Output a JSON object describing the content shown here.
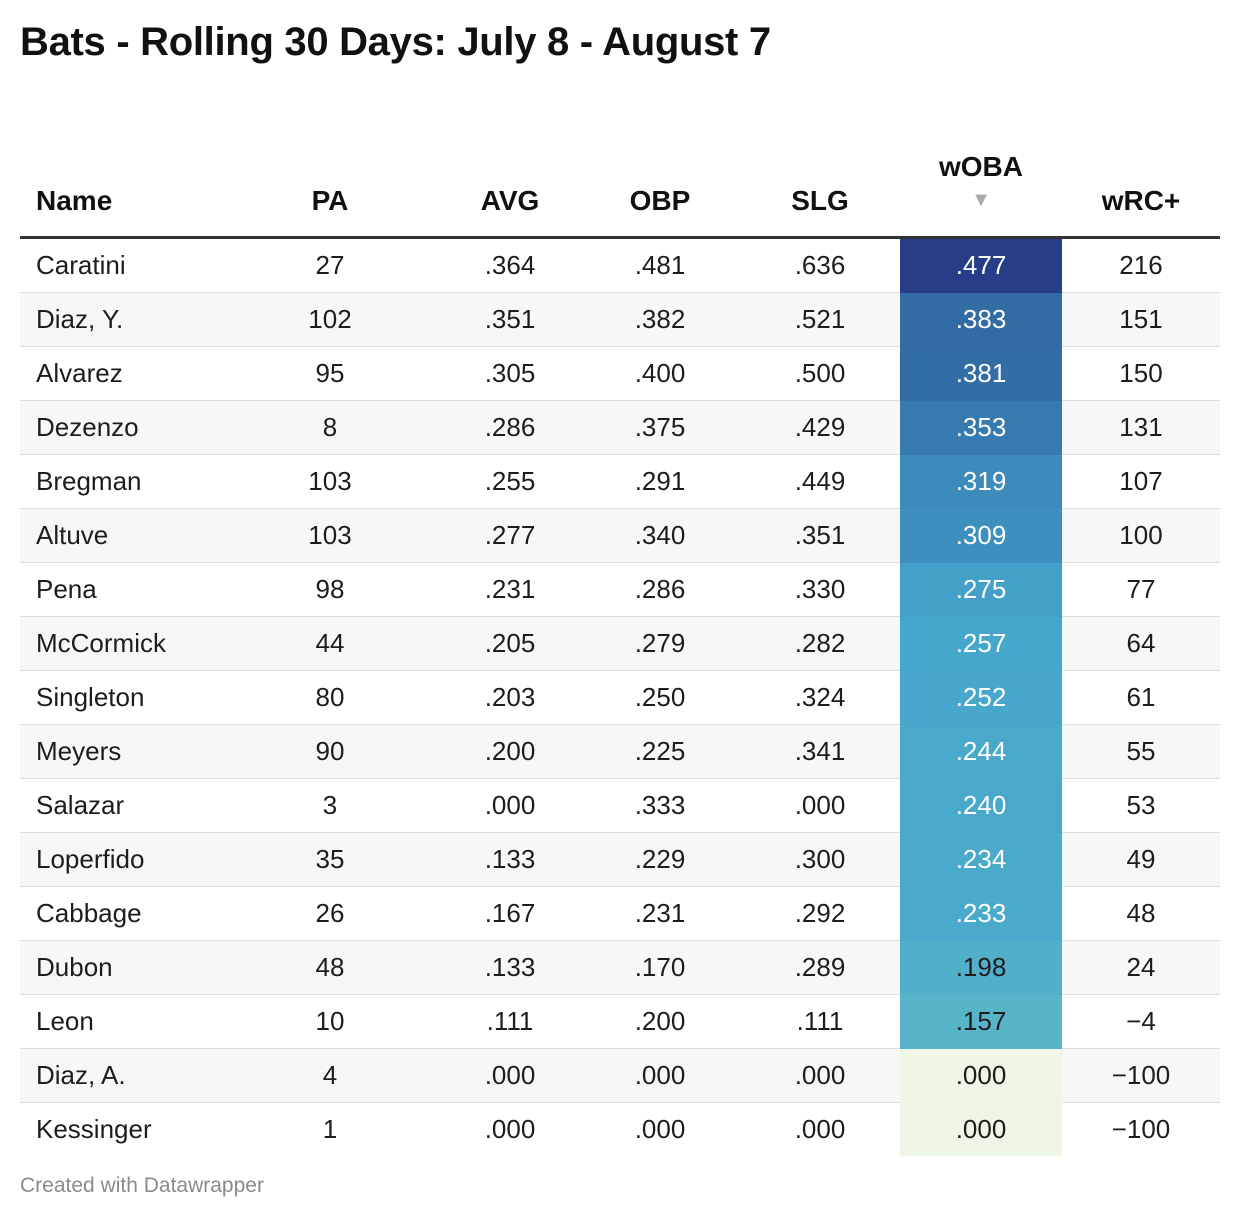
{
  "title": "Bats - Rolling 30 Days: July 8 - August 7",
  "footer": "Created with Datawrapper",
  "sort_arrow": "▼",
  "colors": {
    "scale_low": "#eef7e6",
    "scale_mid": "#45a6cc",
    "scale_high": "#253e87",
    "light_text": "#ffffff",
    "dark_text": "#1d1d1d"
  },
  "chart_data": {
    "type": "table",
    "title": "Bats - Rolling 30 Days: July 8 - August 7",
    "columns": [
      "Name",
      "PA",
      "AVG",
      "OBP",
      "SLG",
      "wOBA",
      "wRC+"
    ],
    "sorted_column": "wOBA",
    "sort_order": "descending",
    "heatmap_column": "wOBA",
    "rows": [
      [
        "Caratini",
        "27",
        ".364",
        ".481",
        ".636",
        ".477",
        "216"
      ],
      [
        "Diaz, Y.",
        "102",
        ".351",
        ".382",
        ".521",
        ".383",
        "151"
      ],
      [
        "Alvarez",
        "95",
        ".305",
        ".400",
        ".500",
        ".381",
        "150"
      ],
      [
        "Dezenzo",
        "8",
        ".286",
        ".375",
        ".429",
        ".353",
        "131"
      ],
      [
        "Bregman",
        "103",
        ".255",
        ".291",
        ".449",
        ".319",
        "107"
      ],
      [
        "Altuve",
        "103",
        ".277",
        ".340",
        ".351",
        ".309",
        "100"
      ],
      [
        "Pena",
        "98",
        ".231",
        ".286",
        ".330",
        ".275",
        "77"
      ],
      [
        "McCormick",
        "44",
        ".205",
        ".279",
        ".282",
        ".257",
        "64"
      ],
      [
        "Singleton",
        "80",
        ".203",
        ".250",
        ".324",
        ".252",
        "61"
      ],
      [
        "Meyers",
        "90",
        ".200",
        ".225",
        ".341",
        ".244",
        "55"
      ],
      [
        "Salazar",
        "3",
        ".000",
        ".333",
        ".000",
        ".240",
        "53"
      ],
      [
        "Loperfido",
        "35",
        ".133",
        ".229",
        ".300",
        ".234",
        "49"
      ],
      [
        "Cabbage",
        "26",
        ".167",
        ".231",
        ".292",
        ".233",
        "48"
      ],
      [
        "Dubon",
        "48",
        ".133",
        ".170",
        ".289",
        ".198",
        "24"
      ],
      [
        "Leon",
        "10",
        ".111",
        ".200",
        ".111",
        ".157",
        "−4"
      ],
      [
        "Diaz, A.",
        "4",
        ".000",
        ".000",
        ".000",
        ".000",
        "−100"
      ],
      [
        "Kessinger",
        "1",
        ".000",
        ".000",
        ".000",
        ".000",
        "−100"
      ]
    ]
  }
}
